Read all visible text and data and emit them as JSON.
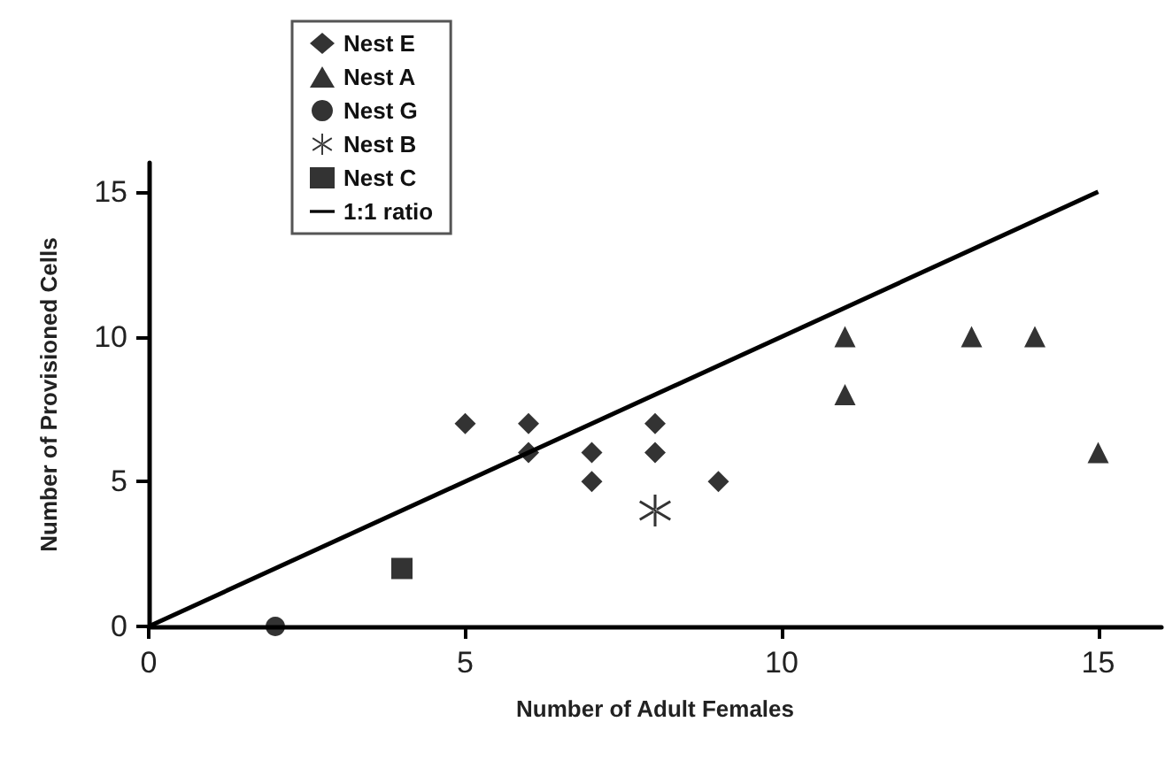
{
  "chart_data": {
    "type": "scatter",
    "xlabel": "Number of Adult Females",
    "ylabel": "Number of Provisioned Cells",
    "xlim": [
      0,
      16
    ],
    "ylim": [
      0,
      16
    ],
    "xticks": [
      0,
      5,
      10,
      15
    ],
    "yticks": [
      0,
      5,
      10,
      15
    ],
    "grid": false,
    "legend": "top left",
    "series": [
      {
        "name": "Nest E",
        "color": "#000000",
        "marker": "diamond",
        "x": [
          5,
          6,
          6,
          7,
          7,
          8,
          8,
          9
        ],
        "values": [
          7,
          7,
          6,
          6,
          5,
          7,
          6,
          5
        ]
      },
      {
        "name": "Nest A",
        "color": "#000000",
        "marker": "triangle",
        "x": [
          11,
          11,
          13,
          14,
          15
        ],
        "values": [
          10,
          8,
          10,
          10,
          6
        ]
      },
      {
        "name": "Nest G",
        "color": "#000000",
        "marker": "circle",
        "x": [
          2
        ],
        "values": [
          0
        ]
      },
      {
        "name": "Nest B",
        "color": "#000000",
        "marker": "cross",
        "x": [
          8
        ],
        "values": [
          4
        ]
      },
      {
        "name": "Nest C",
        "color": "#000000",
        "marker": "square",
        "x": [
          4
        ],
        "values": [
          2
        ]
      },
      {
        "name": "1:1 ratio",
        "type": "line",
        "color": "#000000",
        "marker": "none",
        "line_style": "solid",
        "x": [
          0,
          15
        ],
        "values": [
          0,
          15
        ]
      }
    ]
  }
}
